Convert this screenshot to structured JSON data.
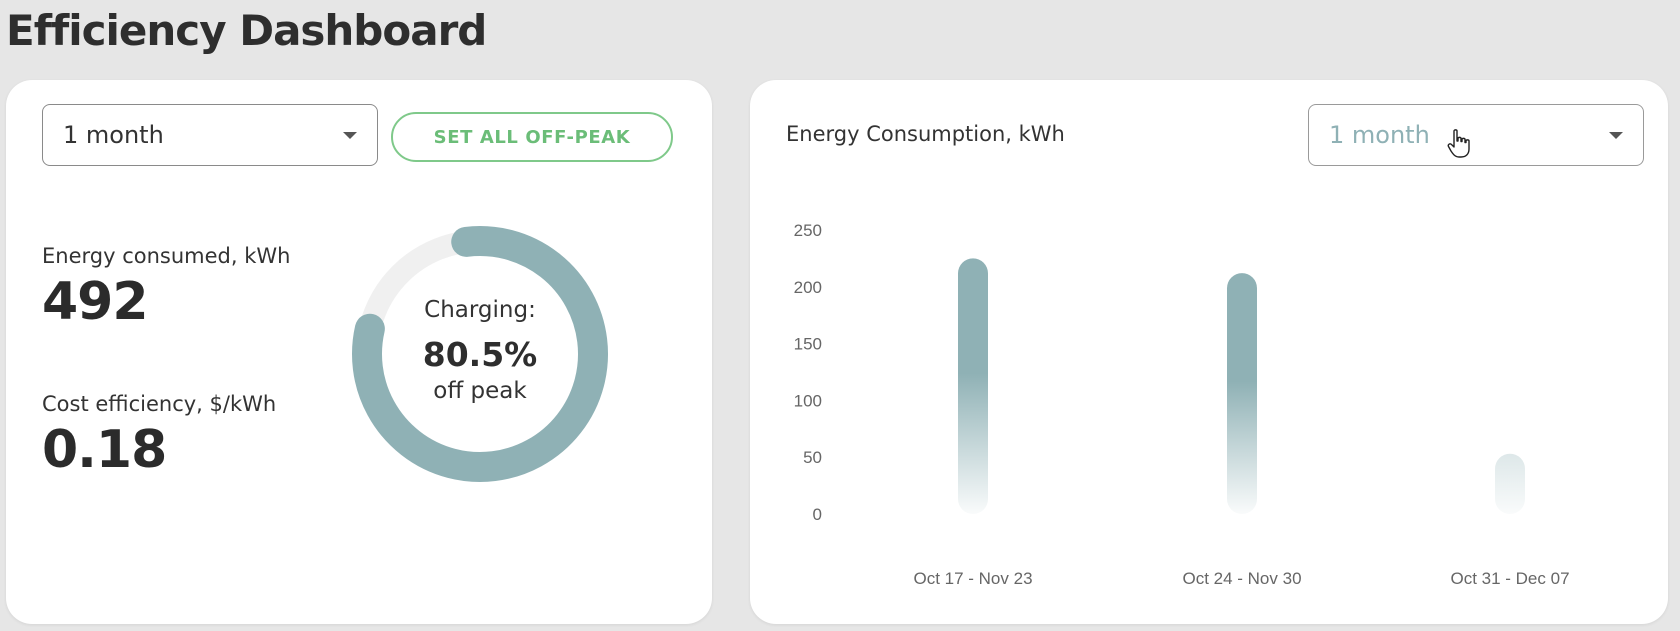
{
  "page": {
    "title": "Efficiency Dashboard"
  },
  "left_card": {
    "period_select": {
      "value": "1 month"
    },
    "off_peak_button": "SET ALL OFF-PEAK",
    "energy": {
      "label": "Energy consumed, kWh",
      "value": "492"
    },
    "cost": {
      "label": "Cost efficiency, $/kWh",
      "value": "0.18"
    },
    "charging": {
      "caption": "Charging:",
      "percent_text": "80.5%",
      "percent": 80.5,
      "sub": "off peak"
    }
  },
  "right_card": {
    "title": "Energy Consumption, kWh",
    "period_select": {
      "value": "1 month"
    }
  },
  "colors": {
    "accent": "#8fb1b5",
    "button_green": "#6bbd78",
    "track": "#f0f0f0"
  },
  "chart_data": {
    "type": "bar",
    "title": "Energy Consumption, kWh",
    "categories": [
      "Oct 17 - Nov 23",
      "Oct 24 - Nov 30",
      "Oct 31 - Dec 07"
    ],
    "values": [
      225,
      212,
      53
    ],
    "ylim": [
      0,
      250
    ],
    "yticks": [
      0,
      50,
      100,
      150,
      200,
      250
    ],
    "grid": false,
    "xlabel": "",
    "ylabel": ""
  }
}
